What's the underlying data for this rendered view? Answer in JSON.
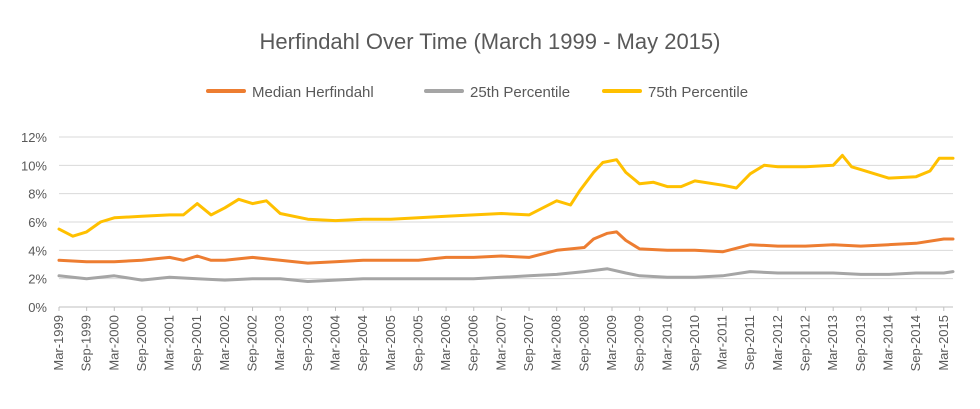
{
  "chart_data": {
    "type": "line",
    "title": "Herfindahl Over Time (March 1999 - May 2015)",
    "xlabel": "",
    "ylabel": "",
    "start": "Mar-1999",
    "end": "May-2015",
    "ylim": [
      0,
      12
    ],
    "y_ticks": [
      "0%",
      "2%",
      "4%",
      "6%",
      "8%",
      "10%",
      "12%"
    ],
    "x_ticks": [
      "Mar-1999",
      "Sep-1999",
      "Mar-2000",
      "Sep-2000",
      "Mar-2001",
      "Sep-2001",
      "Mar-2002",
      "Sep-2002",
      "Mar-2003",
      "Sep-2003",
      "Mar-2004",
      "Sep-2004",
      "Mar-2005",
      "Sep-2005",
      "Mar-2006",
      "Sep-2006",
      "Mar-2007",
      "Sep-2007",
      "Mar-2008",
      "Sep-2008",
      "Mar-2009",
      "Sep-2009",
      "Mar-2010",
      "Sep-2010",
      "Mar-2011",
      "Sep-2011",
      "Mar-2012",
      "Sep-2012",
      "Mar-2013",
      "Sep-2013",
      "Mar-2014",
      "Sep-2014",
      "Mar-2015"
    ],
    "grid": true,
    "legend_position": "top",
    "series": [
      {
        "name": "Median Herfindahl",
        "color": "#ED7D31",
        "points": [
          [
            "Mar-1999",
            3.3
          ],
          [
            "Sep-1999",
            3.2
          ],
          [
            "Mar-2000",
            3.2
          ],
          [
            "Sep-2000",
            3.3
          ],
          [
            "Dec-2000",
            3.4
          ],
          [
            "Mar-2001",
            3.5
          ],
          [
            "Jun-2001",
            3.3
          ],
          [
            "Sep-2001",
            3.6
          ],
          [
            "Dec-2001",
            3.3
          ],
          [
            "Mar-2002",
            3.3
          ],
          [
            "Sep-2002",
            3.5
          ],
          [
            "Mar-2003",
            3.3
          ],
          [
            "Sep-2003",
            3.1
          ],
          [
            "Mar-2004",
            3.2
          ],
          [
            "Sep-2004",
            3.3
          ],
          [
            "Mar-2005",
            3.3
          ],
          [
            "Sep-2005",
            3.3
          ],
          [
            "Mar-2006",
            3.5
          ],
          [
            "Sep-2006",
            3.5
          ],
          [
            "Mar-2007",
            3.6
          ],
          [
            "Sep-2007",
            3.5
          ],
          [
            "Mar-2008",
            4.0
          ],
          [
            "Sep-2008",
            4.2
          ],
          [
            "Nov-2008",
            4.8
          ],
          [
            "Feb-2009",
            5.2
          ],
          [
            "Apr-2009",
            5.3
          ],
          [
            "Jun-2009",
            4.7
          ],
          [
            "Sep-2009",
            4.1
          ],
          [
            "Mar-2010",
            4.0
          ],
          [
            "Sep-2010",
            4.0
          ],
          [
            "Mar-2011",
            3.9
          ],
          [
            "Sep-2011",
            4.4
          ],
          [
            "Mar-2012",
            4.3
          ],
          [
            "Sep-2012",
            4.3
          ],
          [
            "Mar-2013",
            4.4
          ],
          [
            "Sep-2013",
            4.3
          ],
          [
            "Mar-2014",
            4.4
          ],
          [
            "Sep-2014",
            4.5
          ],
          [
            "Mar-2015",
            4.8
          ],
          [
            "May-2015",
            4.8
          ]
        ]
      },
      {
        "name": "25th Percentile",
        "color": "#A5A5A5",
        "points": [
          [
            "Mar-1999",
            2.2
          ],
          [
            "Sep-1999",
            2.0
          ],
          [
            "Mar-2000",
            2.2
          ],
          [
            "Sep-2000",
            1.9
          ],
          [
            "Mar-2001",
            2.1
          ],
          [
            "Sep-2001",
            2.0
          ],
          [
            "Mar-2002",
            1.9
          ],
          [
            "Sep-2002",
            2.0
          ],
          [
            "Mar-2003",
            2.0
          ],
          [
            "Sep-2003",
            1.8
          ],
          [
            "Mar-2004",
            1.9
          ],
          [
            "Sep-2004",
            2.0
          ],
          [
            "Mar-2005",
            2.0
          ],
          [
            "Sep-2005",
            2.0
          ],
          [
            "Mar-2006",
            2.0
          ],
          [
            "Sep-2006",
            2.0
          ],
          [
            "Mar-2007",
            2.1
          ],
          [
            "Sep-2007",
            2.2
          ],
          [
            "Mar-2008",
            2.3
          ],
          [
            "Sep-2008",
            2.5
          ],
          [
            "Feb-2009",
            2.7
          ],
          [
            "Jun-2009",
            2.4
          ],
          [
            "Sep-2009",
            2.2
          ],
          [
            "Mar-2010",
            2.1
          ],
          [
            "Sep-2010",
            2.1
          ],
          [
            "Mar-2011",
            2.2
          ],
          [
            "Sep-2011",
            2.5
          ],
          [
            "Mar-2012",
            2.4
          ],
          [
            "Sep-2012",
            2.4
          ],
          [
            "Mar-2013",
            2.4
          ],
          [
            "Sep-2013",
            2.3
          ],
          [
            "Mar-2014",
            2.3
          ],
          [
            "Sep-2014",
            2.4
          ],
          [
            "Mar-2015",
            2.4
          ],
          [
            "May-2015",
            2.5
          ]
        ]
      },
      {
        "name": "75th Percentile",
        "color": "#FFC000",
        "points": [
          [
            "Mar-1999",
            5.5
          ],
          [
            "Jun-1999",
            5.0
          ],
          [
            "Sep-1999",
            5.3
          ],
          [
            "Dec-1999",
            6.0
          ],
          [
            "Mar-2000",
            6.3
          ],
          [
            "Sep-2000",
            6.4
          ],
          [
            "Mar-2001",
            6.5
          ],
          [
            "Jun-2001",
            6.5
          ],
          [
            "Sep-2001",
            7.3
          ],
          [
            "Dec-2001",
            6.5
          ],
          [
            "Mar-2002",
            7.0
          ],
          [
            "Jun-2002",
            7.6
          ],
          [
            "Sep-2002",
            7.3
          ],
          [
            "Dec-2002",
            7.5
          ],
          [
            "Mar-2003",
            6.6
          ],
          [
            "Sep-2003",
            6.2
          ],
          [
            "Mar-2004",
            6.1
          ],
          [
            "Sep-2004",
            6.2
          ],
          [
            "Mar-2005",
            6.2
          ],
          [
            "Sep-2005",
            6.3
          ],
          [
            "Mar-2006",
            6.4
          ],
          [
            "Sep-2006",
            6.5
          ],
          [
            "Mar-2007",
            6.6
          ],
          [
            "Sep-2007",
            6.5
          ],
          [
            "Mar-2008",
            7.5
          ],
          [
            "Jun-2008",
            7.2
          ],
          [
            "Aug-2008",
            8.2
          ],
          [
            "Nov-2008",
            9.5
          ],
          [
            "Jan-2009",
            10.2
          ],
          [
            "Apr-2009",
            10.4
          ],
          [
            "Jun-2009",
            9.5
          ],
          [
            "Sep-2009",
            8.7
          ],
          [
            "Dec-2009",
            8.8
          ],
          [
            "Mar-2010",
            8.5
          ],
          [
            "Jun-2010",
            8.5
          ],
          [
            "Sep-2010",
            8.9
          ],
          [
            "Mar-2011",
            8.6
          ],
          [
            "Jun-2011",
            8.4
          ],
          [
            "Sep-2011",
            9.4
          ],
          [
            "Dec-2011",
            10.0
          ],
          [
            "Mar-2012",
            9.9
          ],
          [
            "Sep-2012",
            9.9
          ],
          [
            "Mar-2013",
            10.0
          ],
          [
            "May-2013",
            10.7
          ],
          [
            "Jul-2013",
            9.9
          ],
          [
            "Sep-2013",
            9.7
          ],
          [
            "Mar-2014",
            9.1
          ],
          [
            "Sep-2014",
            9.2
          ],
          [
            "Dec-2014",
            9.6
          ],
          [
            "Feb-2015",
            10.5
          ],
          [
            "Mar-2015",
            10.5
          ],
          [
            "May-2015",
            10.5
          ]
        ]
      }
    ]
  }
}
